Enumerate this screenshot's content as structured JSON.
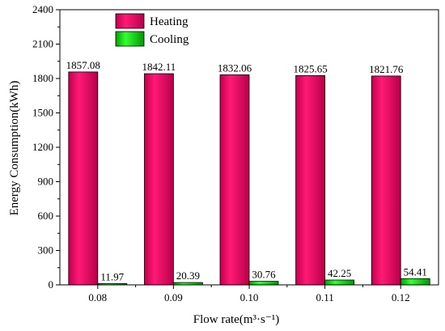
{
  "chart_data": {
    "type": "bar",
    "xlabel": "Flow rate(m³·s⁻¹)",
    "ylabel": "Energy Consumption(kWh)",
    "categories": [
      "0.08",
      "0.09",
      "0.10",
      "0.11",
      "0.12"
    ],
    "series": [
      {
        "name": "Heating",
        "color": "#e6005c",
        "values": [
          1857.08,
          1842.11,
          1832.06,
          1825.65,
          1821.76
        ]
      },
      {
        "name": "Cooling",
        "color": "#00cc00",
        "values": [
          11.97,
          20.39,
          30.76,
          42.25,
          54.41
        ]
      }
    ],
    "ylim": [
      0,
      2400
    ],
    "yticks": [
      "0",
      "300",
      "600",
      "900",
      "1200",
      "1500",
      "1800",
      "2100",
      "2400"
    ],
    "legend_position": "top-left",
    "grid": false
  }
}
